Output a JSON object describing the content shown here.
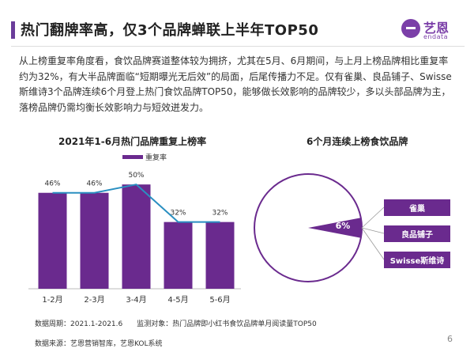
{
  "header": {
    "title": "热门翻牌率高，仅3个品牌蝉联上半年TOP50",
    "logo_cn": "艺恩",
    "logo_en": "endata"
  },
  "intro": "从上榜重复率角度看，食饮品牌赛道整体较为拥挤，尤其在5月、6月期间，与上月上榜品牌相比重复率约为32%，有大半品牌面临“短期曝光无后效”的局面，后尾传播力不足。仅有雀巢、良品铺子、Swisse斯维诗3个品牌连续6个月登上热门食饮品牌TOP50，能够做长效影响的品牌较少，多以头部品牌为主，落榜品牌仍需均衡长效影响力与短效迸发力。",
  "colors": {
    "accent": "#6a2a8e",
    "line": "#2a8fc1",
    "brand": "#7b3fa8"
  },
  "chart_data": [
    {
      "type": "bar",
      "title": "2021年1-6月热门品牌重复上榜率",
      "categories": [
        "1-2月",
        "2-3月",
        "3-4月",
        "4-5月",
        "5-6月"
      ],
      "series": [
        {
          "name": "重复率",
          "values": [
            46,
            46,
            50,
            32,
            32
          ]
        }
      ],
      "value_labels": [
        "46%",
        "46%",
        "50%",
        "32%",
        "32%"
      ],
      "overlay_line": true,
      "ylim": [
        0,
        55
      ],
      "legend": "top"
    },
    {
      "type": "pie",
      "title": "6个月连续上榜食饮品牌",
      "slices": [
        {
          "label": "6%",
          "value": 6
        },
        {
          "label": "",
          "value": 94
        }
      ],
      "callouts": [
        "雀巢",
        "良品铺子",
        "Swisse斯维诗"
      ]
    }
  ],
  "footnotes": {
    "period": "数据周期：2021.1-2021.6　　监测对象：热门品牌即小红书食饮品牌单月阅读量TOP50",
    "source": "数据来源：艺恩营销智库，艺恩KOL系统"
  },
  "page_number": "6"
}
